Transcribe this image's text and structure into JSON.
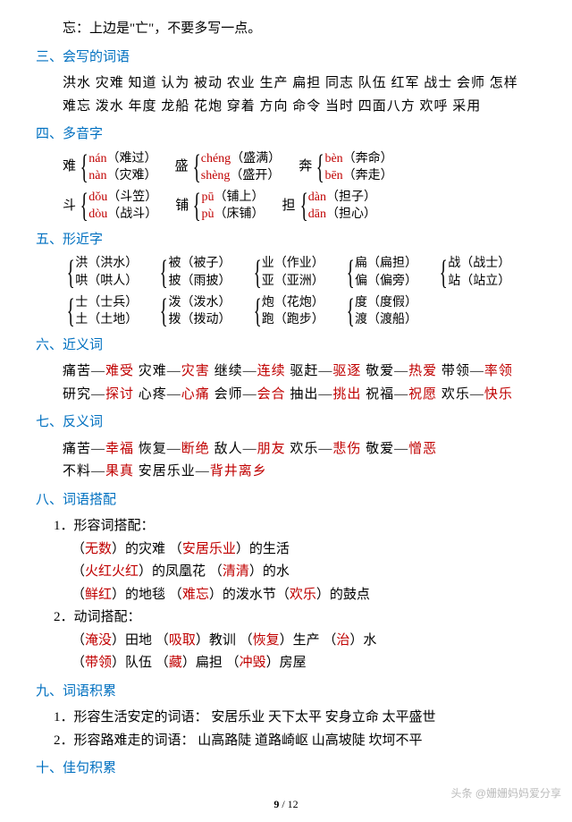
{
  "intro": "忘：上边是\"亡\"，不要多写一点。",
  "s3": {
    "title": "三、会写的词语",
    "line1": "洪水 灾难 知道 认为 被动 农业 生产 扁担 同志 队伍 红军 战士 会师 怎样",
    "line2": "难忘 泼水 年度 龙船 花炮 穿着  方向 命令 当时 四面八方 欢呼 采用"
  },
  "s4": {
    "title": "四、多音字",
    "groups": [
      [
        {
          "lead": "难",
          "a_py": "nán",
          "a_cn": "（难过）",
          "b_py": "nàn",
          "b_cn": "（灾难）"
        },
        {
          "lead": "盛",
          "a_py": "chéng",
          "a_cn": "（盛满）",
          "b_py": "shèng",
          "b_cn": "（盛开）"
        },
        {
          "lead": "奔",
          "a_py": "bèn",
          "a_cn": "（奔命）",
          "b_py": "bēn",
          "b_cn": "（奔走）"
        }
      ],
      [
        {
          "lead": "斗",
          "a_py": "dǒu",
          "a_cn": "（斗笠）",
          "b_py": "dòu",
          "b_cn": "（战斗）"
        },
        {
          "lead": "铺",
          "a_py": "pū",
          "a_cn": "（铺上）",
          "b_py": "pù",
          "b_cn": "（床铺）"
        },
        {
          "lead": "担",
          "a_py": "dàn",
          "a_cn": "（担子）",
          "b_py": "dān",
          "b_cn": "（担心）"
        }
      ]
    ]
  },
  "s5": {
    "title": "五、形近字",
    "groups": [
      [
        {
          "a": "洪（洪水）",
          "b": "哄（哄人）"
        },
        {
          "a": "被（被子）",
          "b": "披（雨披）"
        },
        {
          "a": "业（作业）",
          "b": "亚（亚洲）"
        },
        {
          "a": "扁（扁担）",
          "b": "偏（偏旁）"
        },
        {
          "a": "战（战士）",
          "b": "站（站立）"
        }
      ],
      [
        {
          "a": "士（士兵）",
          "b": "土（土地）"
        },
        {
          "a": "泼（泼水）",
          "b": "拨（拨动）"
        },
        {
          "a": "炮（花炮）",
          "b": "跑（跑步）"
        },
        {
          "a": "度（度假）",
          "b": "渡（渡船）"
        }
      ]
    ]
  },
  "s6": {
    "title": "六、近义词",
    "pairs": [
      [
        [
          "痛苦",
          "难受"
        ],
        [
          "灾难",
          "灾害"
        ],
        [
          "继续",
          "连续"
        ],
        [
          "驱赶",
          "驱逐"
        ],
        [
          "敬爱",
          "热爱"
        ],
        [
          "带领",
          "率领"
        ]
      ],
      [
        [
          "研究",
          "探讨"
        ],
        [
          "心疼",
          "心痛"
        ],
        [
          "会师",
          "会合"
        ],
        [
          "抽出",
          "挑出"
        ],
        [
          "祝福",
          "祝愿"
        ],
        [
          "欢乐",
          "快乐"
        ]
      ]
    ]
  },
  "s7": {
    "title": "七、反义词",
    "pairs": [
      [
        [
          "痛苦",
          "幸福"
        ],
        [
          "恢复",
          "断绝"
        ],
        [
          "敌人",
          "朋友"
        ],
        [
          "欢乐",
          "悲伤"
        ],
        [
          "敬爱",
          "憎恶"
        ]
      ],
      [
        [
          "不料",
          "果真"
        ],
        [
          "安居乐业",
          "背井离乡"
        ]
      ]
    ]
  },
  "s8": {
    "title": "八、词语搭配",
    "sub1": "1．形容词搭配：",
    "adj": [
      [
        {
          "r": "无数",
          "b": "）的灾难"
        },
        {
          "r": "安居乐业",
          "b": "）的生活"
        }
      ],
      [
        {
          "r": "火红火红",
          "b": "）的凤凰花"
        },
        {
          "r": "清清",
          "b": "）的水"
        }
      ],
      [
        {
          "r": "鲜红",
          "b": "）的地毯"
        },
        {
          "r": "难忘",
          "b": "）的泼水节（",
          "r2": "欢乐",
          "b2": "）的鼓点"
        }
      ]
    ],
    "sub2": "2．动词搭配：",
    "verb": [
      [
        {
          "r": "淹没",
          "b": "）田地"
        },
        {
          "r": "吸取",
          "b": "）教训"
        },
        {
          "r": "恢复",
          "b": "）生产"
        },
        {
          "r": "治",
          "b": "）水"
        }
      ],
      [
        {
          "r": "带领",
          "b": "）队伍"
        },
        {
          "r": "藏",
          "b": "）扁担"
        },
        {
          "r": "冲毁",
          "b": "）房屋"
        }
      ]
    ]
  },
  "s9": {
    "title": "九、词语积累",
    "line1": "1．形容生活安定的词语：  安居乐业 天下太平 安身立命 太平盛世",
    "line2": "2．形容路难走的词语：  山高路陡 道路崎岖 山高坡陡 坎坷不平"
  },
  "s10": {
    "title": "十、佳句积累"
  },
  "footer": {
    "page": "9",
    "total": "12"
  },
  "watermark": "头条 @姗姗妈妈爱分享"
}
